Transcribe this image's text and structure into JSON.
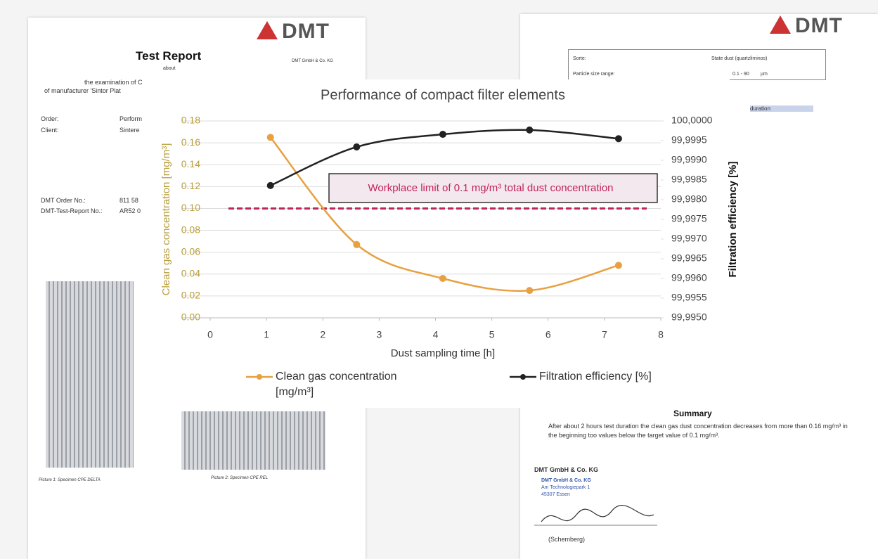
{
  "chart_data": {
    "type": "line",
    "title": "Performance of compact filter elements",
    "x_label": "Dust sampling time [h]",
    "y_label": "Clean gas concentration [mg/m³]",
    "y2_label": "Filtration efficiency [%]",
    "x": [
      1.07,
      2.6,
      4.13,
      5.67,
      7.25
    ],
    "series": [
      {
        "name": "Clean gas concentration [mg/m³]",
        "color": "#e8a040",
        "values": [
          0.165,
          0.067,
          0.036,
          0.025,
          0.048
        ]
      },
      {
        "name": "Filtration efficiency [%]",
        "color": "#222222",
        "axis": "y2",
        "values": [
          99.99836,
          99.99934,
          99.99966,
          99.99977,
          99.99955
        ]
      }
    ],
    "xlim": [
      0,
      8
    ],
    "xticks": [
      0,
      1,
      2,
      3,
      4,
      5,
      6,
      7,
      8
    ],
    "ylim": [
      0,
      0.18
    ],
    "yticks": [
      {
        "value": 0,
        "label": "0.00"
      },
      {
        "value": 0.02,
        "label": "0.02"
      },
      {
        "value": 0.04,
        "label": "0.04"
      },
      {
        "value": 0.06,
        "label": "0.06"
      },
      {
        "value": 0.08,
        "label": "0.08"
      },
      {
        "value": 0.1,
        "label": "0.10"
      },
      {
        "value": 0.12,
        "label": "0.12"
      },
      {
        "value": 0.14,
        "label": "0.14"
      },
      {
        "value": 0.16,
        "label": "0.16"
      },
      {
        "value": 0.18,
        "label": "0.18"
      }
    ],
    "y2lim": [
      99.995,
      100
    ],
    "y2ticks": [
      {
        "value": 99.995,
        "label": "99,9950"
      },
      {
        "value": 99.9955,
        "label": "99,9955"
      },
      {
        "value": 99.996,
        "label": "99,9960"
      },
      {
        "value": 99.9965,
        "label": "99,9965"
      },
      {
        "value": 99.997,
        "label": "99,9970"
      },
      {
        "value": 99.9975,
        "label": "99,9975"
      },
      {
        "value": 99.998,
        "label": "99,9980"
      },
      {
        "value": 99.9985,
        "label": "99,9985"
      },
      {
        "value": 99.999,
        "label": "99,9990"
      },
      {
        "value": 99.9995,
        "label": "99,9995"
      },
      {
        "value": 100,
        "label": "100,0000"
      }
    ],
    "grid": true,
    "reference_line": {
      "value": 0.1,
      "color": "#c0245c",
      "label": "Workplace limit of 0.1 mg/m³ total dust concentration"
    }
  },
  "document": {
    "logos": [
      "DMT",
      "DMT"
    ],
    "title": "Test Report",
    "subtitle": "about",
    "company_small": "DMT GmbH & Co. KG",
    "intro": [
      "the examination of C",
      "of manufacturer 'Sintor Plat"
    ],
    "fields": [
      [
        "Order:",
        "Perform"
      ],
      [
        "Client:",
        "Sintere"
      ],
      [
        "DMT Order No.:",
        "811 58"
      ],
      [
        "DMT-Test-Report No.:",
        "AR52 0"
      ]
    ],
    "table": [
      [
        "Sorte:",
        "State dust (quartzliminos)"
      ],
      [
        "Particle size range:",
        "0.1 - 90",
        "µm"
      ]
    ],
    "table_header": "duration",
    "captions": [
      "Picture 1: Specimen CPE DELTA",
      "Picture 2: Specimen CPE REL"
    ],
    "summary": {
      "heading": "Summary",
      "text": "After about 2 hours test duration the clean gas dust concentration decreases from more than 0.16 mg/m³ in the beginning too values below the target value of 0.1 mg/m³."
    },
    "signature": {
      "company": "DMT GmbH & Co. KG",
      "address": [
        "DMT GmbH & Co. KG",
        "Am Technologiepark 1",
        "45307 Essen"
      ],
      "name": "(Schemberg)"
    }
  }
}
